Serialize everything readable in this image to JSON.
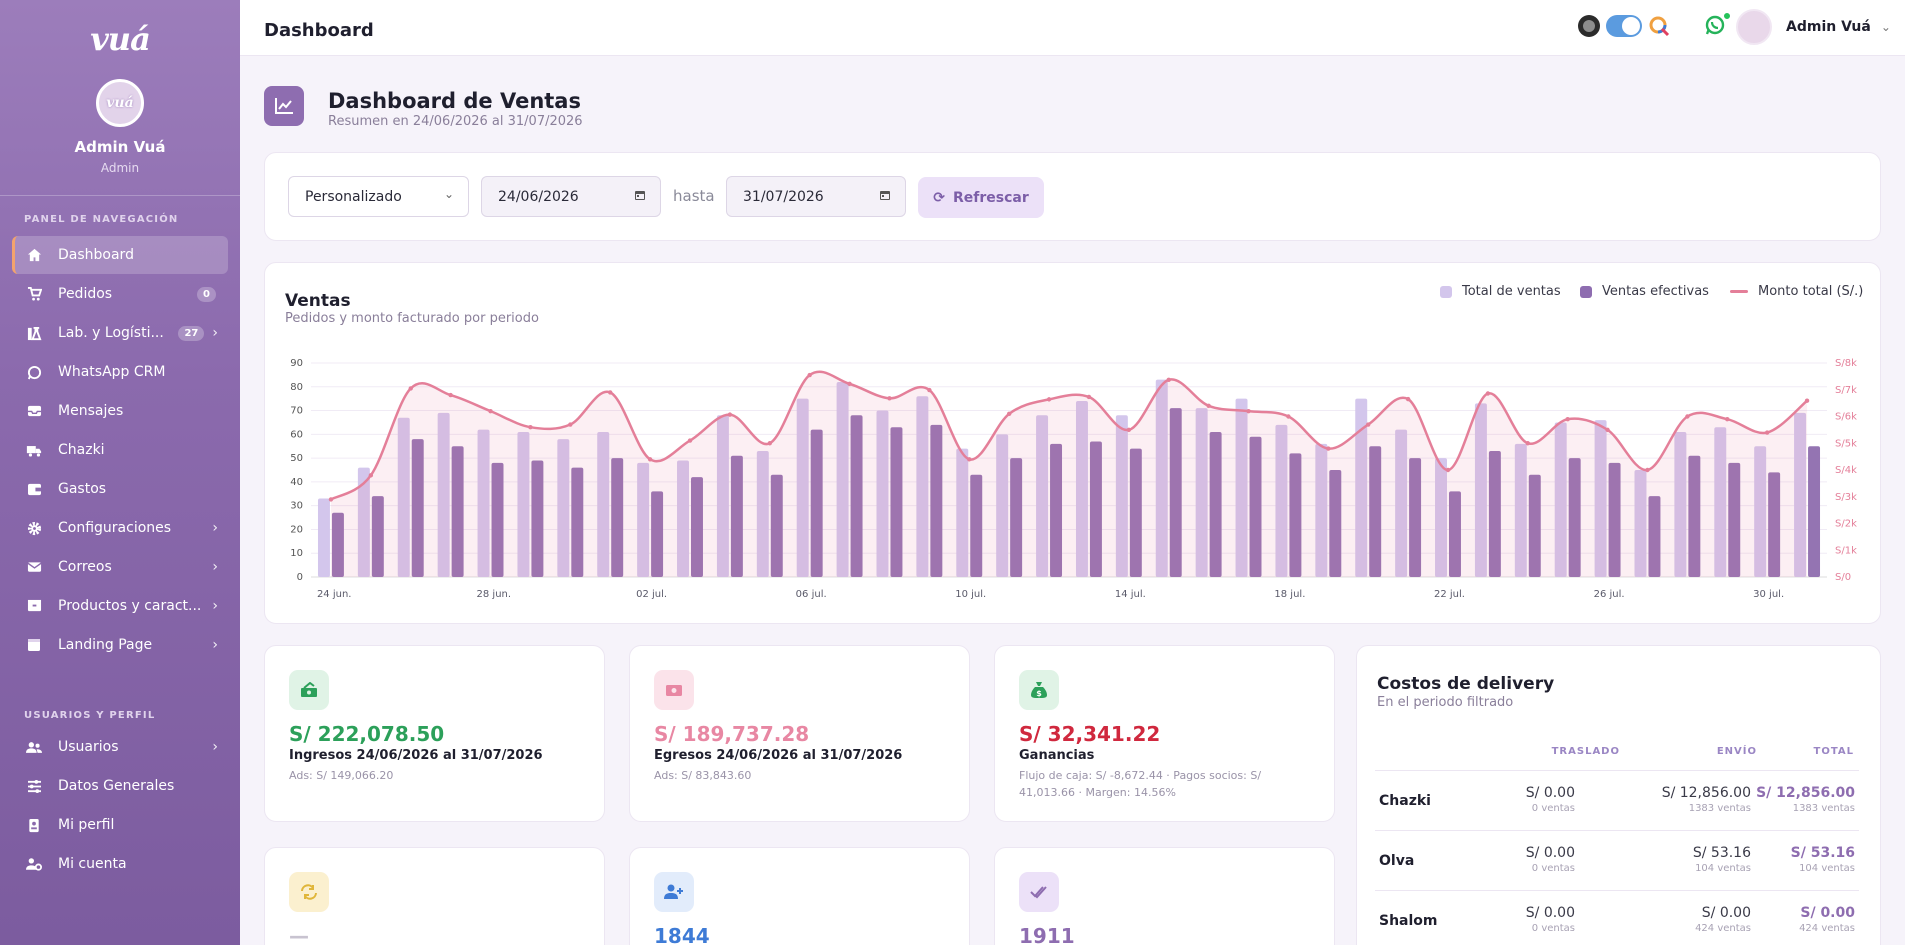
{
  "sidebar": {
    "logo": "vuá",
    "avatar_text": "vuá",
    "user_name": "Admin Vuá",
    "user_role": "Admin",
    "section_nav": "PANEL DE NAVEGACIÓN",
    "section_user": "USUARIOS Y PERFIL",
    "items": [
      {
        "label": "Dashboard",
        "icon": "home-icon",
        "active": true
      },
      {
        "label": "Pedidos",
        "icon": "cart-icon",
        "badge": "0"
      },
      {
        "label": "Lab. y Logísti...",
        "icon": "flask-icon",
        "badge": "27",
        "chevron": true
      },
      {
        "label": "WhatsApp CRM",
        "icon": "whatsapp-icon"
      },
      {
        "label": "Mensajes",
        "icon": "inbox-icon"
      },
      {
        "label": "Chazki",
        "icon": "truck-icon"
      },
      {
        "label": "Gastos",
        "icon": "wallet-icon"
      },
      {
        "label": "Configuraciones",
        "icon": "gear-icon",
        "chevron": true
      },
      {
        "label": "Correos",
        "icon": "mail-icon",
        "chevron": true
      },
      {
        "label": "Productos y caract...",
        "icon": "box-icon",
        "chevron": true
      },
      {
        "label": "Landing Page",
        "icon": "page-icon",
        "chevron": true
      },
      {
        "label": "Usuarios",
        "icon": "users-icon",
        "chevron": true
      },
      {
        "label": "Datos Generales",
        "icon": "sliders-icon"
      },
      {
        "label": "Mi perfil",
        "icon": "id-card-icon"
      },
      {
        "label": "Mi cuenta",
        "icon": "user-gear-icon"
      }
    ]
  },
  "topbar": {
    "title": "Dashboard",
    "user": "Admin Vuá"
  },
  "header": {
    "title": "Dashboard de Ventas",
    "subtitle": "Resumen en 24/06/2026 al 31/07/2026"
  },
  "filters": {
    "period": "Personalizado",
    "from": "24/06/2026",
    "hasta": "hasta",
    "to": "31/07/2026",
    "refresh": "Refrescar"
  },
  "chart_section": {
    "title": "Ventas",
    "subtitle": "Pedidos y monto facturado por periodo"
  },
  "chart_data": {
    "type": "bar",
    "x": [
      "24 jun.",
      "25 jun.",
      "26 jun.",
      "27 jun.",
      "28 jun.",
      "29 jun.",
      "30 jun.",
      "01 jul.",
      "02 jul.",
      "03 jul.",
      "04 jul.",
      "05 jul.",
      "06 jul.",
      "07 jul.",
      "08 jul.",
      "09 jul.",
      "10 jul.",
      "11 jul.",
      "12 jul.",
      "13 jul.",
      "14 jul.",
      "15 jul.",
      "16 jul.",
      "17 jul.",
      "18 jul.",
      "19 jul.",
      "20 jul.",
      "21 jul.",
      "22 jul.",
      "23 jul.",
      "24 jul.",
      "25 jul.",
      "26 jul.",
      "27 jul.",
      "28 jul.",
      "29 jul.",
      "30 jul.",
      "31 jul."
    ],
    "tick_labels": [
      "24 jun.",
      "28 jun.",
      "02 jul.",
      "06 jul.",
      "10 jul.",
      "14 jul.",
      "18 jul.",
      "22 jul.",
      "26 jul.",
      "30 jul."
    ],
    "series": [
      {
        "name": "Total de ventas",
        "type": "bar",
        "color": "#d3c6ec",
        "values": [
          33,
          46,
          67,
          69,
          62,
          61,
          58,
          61,
          48,
          49,
          68,
          53,
          75,
          82,
          70,
          76,
          54,
          60,
          68,
          74,
          68,
          83,
          71,
          75,
          64,
          56,
          75,
          62,
          50,
          73,
          56,
          65,
          66,
          45,
          61,
          63,
          55,
          69
        ]
      },
      {
        "name": "Ventas efectivas",
        "type": "bar",
        "color": "#9474b2",
        "values": [
          27,
          34,
          58,
          55,
          48,
          49,
          46,
          50,
          36,
          42,
          51,
          43,
          62,
          68,
          63,
          64,
          43,
          50,
          56,
          57,
          54,
          71,
          61,
          59,
          52,
          45,
          55,
          50,
          36,
          53,
          43,
          50,
          48,
          34,
          51,
          48,
          44,
          55
        ]
      },
      {
        "name": "Monto total (S/.)",
        "type": "line",
        "color": "#e47f99",
        "values": [
          2900,
          3800,
          7050,
          6800,
          6200,
          5600,
          5700,
          6900,
          4400,
          5100,
          6070,
          5000,
          7550,
          7220,
          6680,
          6990,
          4400,
          6100,
          6640,
          6730,
          5500,
          7370,
          6400,
          6200,
          6000,
          4800,
          5700,
          6650,
          4000,
          6860,
          5000,
          5900,
          5500,
          4000,
          6000,
          5900,
          5400,
          6590
        ]
      }
    ],
    "y_left": {
      "min": 0,
      "max": 90,
      "ticks": [
        0,
        10,
        20,
        30,
        40,
        50,
        60,
        70,
        80,
        90
      ]
    },
    "y_right": {
      "min": 0,
      "max": 8000,
      "ticks": [
        "S/0",
        "S/1k",
        "S/2k",
        "S/3k",
        "S/4k",
        "S/5k",
        "S/6k",
        "S/7k",
        "S/8k"
      ]
    },
    "legend_position": "top-right",
    "grid": true
  },
  "stats": [
    {
      "value": "S/ 222,078.50",
      "label": "Ingresos 24/06/2026 al 31/07/2026",
      "note": "Ads: S/ 149,066.20",
      "color": "#2ca05a",
      "icon": "money-icon"
    },
    {
      "value": "S/ 189,737.28",
      "label": "Egresos 24/06/2026 al 31/07/2026",
      "note": "Ads: S/ 83,843.60",
      "color": "#e887a3",
      "icon": "cash-out-icon"
    },
    {
      "value": "S/ 32,341.22",
      "label": "Ganancias",
      "note": "Flujo de caja: S/ -8,672.44 · Pagos socios: S/ 41,013.66 · Margen: 14.56%",
      "color": "#d0283e",
      "icon": "money-bag-icon"
    },
    {
      "value": "—",
      "icon": "repeat-icon",
      "color": "#e0b63a"
    },
    {
      "value": "1844",
      "icon": "user-plus-icon",
      "color": "#3e7bd6"
    },
    {
      "value": "1911",
      "icon": "check-double-icon",
      "color": "#8e6db0"
    }
  ],
  "delivery": {
    "title": "Costos de delivery",
    "subtitle": "En el periodo filtrado",
    "headers": [
      "TRASLADO",
      "ENVÍO",
      "TOTAL"
    ],
    "rows": [
      {
        "name": "Chazki",
        "traslado": "S/ 0.00",
        "traslado_sub": "0 ventas",
        "envio": "S/ 12,856.00",
        "envio_sub": "1383 ventas",
        "total": "S/ 12,856.00",
        "total_sub": "1383 ventas"
      },
      {
        "name": "Olva",
        "traslado": "S/ 0.00",
        "traslado_sub": "0 ventas",
        "envio": "S/ 53.16",
        "envio_sub": "104 ventas",
        "total": "S/ 53.16",
        "total_sub": "104 ventas"
      },
      {
        "name": "Shalom",
        "traslado": "S/ 0.00",
        "traslado_sub": "0 ventas",
        "envio": "S/ 0.00",
        "envio_sub": "424 ventas",
        "total": "S/ 0.00",
        "total_sub": "424 ventas"
      }
    ]
  }
}
